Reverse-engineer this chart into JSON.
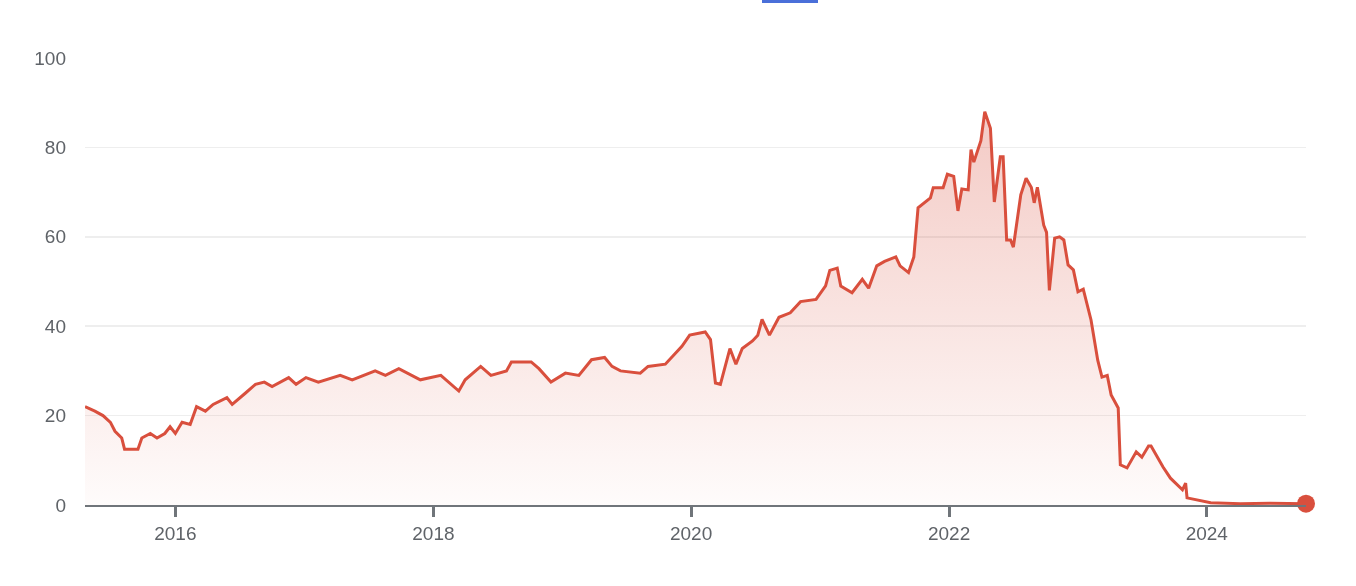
{
  "chart_data": {
    "type": "area",
    "xlim": [
      "2015-04-20",
      "2024-10-08"
    ],
    "ylim": [
      0,
      100
    ],
    "yticks": [
      0,
      20,
      40,
      60,
      80,
      100
    ],
    "xticks": [
      {
        "value": "2016-01-01",
        "label": "2016"
      },
      {
        "value": "2018-01-01",
        "label": "2018"
      },
      {
        "value": "2020-01-01",
        "label": "2020"
      },
      {
        "value": "2022-01-01",
        "label": "2022"
      },
      {
        "value": "2024-01-01",
        "label": "2024"
      }
    ],
    "grid": "y",
    "marker": "none",
    "line_style": "solid",
    "series": [
      {
        "color": "#d94f3d",
        "x": [
          "2015-04-20",
          "2015-05-18",
          "2015-06-10",
          "2015-07-01",
          "2015-07-14",
          "2015-08-02",
          "2015-08-10",
          "2015-09-17",
          "2015-09-28",
          "2015-10-22",
          "2015-11-10",
          "2015-12-02",
          "2015-12-17",
          "2016-01-01",
          "2016-01-20",
          "2016-02-12",
          "2016-03-01",
          "2016-03-26",
          "2016-04-17",
          "2016-05-26",
          "2016-06-10",
          "2016-07-17",
          "2016-08-15",
          "2016-09-09",
          "2016-10-01",
          "2016-11-17",
          "2016-12-08",
          "2017-01-05",
          "2017-02-09",
          "2017-04-12",
          "2017-05-16",
          "2017-07-20",
          "2017-08-18",
          "2017-09-25",
          "2017-11-25",
          "2018-01-22",
          "2018-03-14",
          "2018-04-01",
          "2018-05-15",
          "2018-06-13",
          "2018-07-27",
          "2018-08-10",
          "2018-10-05",
          "2018-10-27",
          "2018-11-30",
          "2019-01-10",
          "2019-02-17",
          "2019-03-25",
          "2019-05-01",
          "2019-05-22",
          "2019-06-15",
          "2019-08-10",
          "2019-09-01",
          "2019-10-20",
          "2019-12-06",
          "2019-12-28",
          "2020-02-10",
          "2020-02-25",
          "2020-03-10",
          "2020-03-24",
          "2020-04-20",
          "2020-05-07",
          "2020-05-25",
          "2020-06-23",
          "2020-07-08",
          "2020-07-20",
          "2020-08-10",
          "2020-09-06",
          "2020-10-08",
          "2020-11-06",
          "2020-12-20",
          "2021-01-16",
          "2021-01-28",
          "2021-02-18",
          "2021-02-28",
          "2021-04-01",
          "2021-04-30",
          "2021-05-18",
          "2021-06-10",
          "2021-07-02",
          "2021-08-03",
          "2021-08-15",
          "2021-09-08",
          "2021-09-23",
          "2021-10-05",
          "2021-11-09",
          "2021-11-17",
          "2021-12-15",
          "2021-12-27",
          "2022-01-14",
          "2022-01-26",
          "2022-02-06",
          "2022-02-24",
          "2022-03-04",
          "2022-03-12",
          "2022-04-01",
          "2022-04-12",
          "2022-04-28",
          "2022-05-09",
          "2022-05-26",
          "2022-06-03",
          "2022-06-13",
          "2022-06-24",
          "2022-07-02",
          "2022-07-23",
          "2022-08-07",
          "2022-08-22",
          "2022-08-30",
          "2022-09-08",
          "2022-09-26",
          "2022-10-04",
          "2022-10-12",
          "2022-10-27",
          "2022-11-10",
          "2022-11-22",
          "2022-12-04",
          "2022-12-19",
          "2023-01-01",
          "2023-01-16",
          "2023-02-07",
          "2023-02-26",
          "2023-03-10",
          "2023-03-25",
          "2023-04-05",
          "2023-04-25",
          "2023-05-01",
          "2023-05-20",
          "2023-06-15",
          "2023-07-01",
          "2023-07-20",
          "2023-07-27",
          "2023-08-30",
          "2023-09-20",
          "2023-10-24",
          "2023-11-02",
          "2023-11-06",
          "2024-01-12",
          "2024-04-05",
          "2024-06-28",
          "2024-10-08"
        ],
        "values": [
          22,
          21,
          20,
          18.5,
          16.5,
          15,
          12.5,
          12.5,
          15,
          16,
          15,
          16,
          17.5,
          16,
          18.5,
          18,
          22,
          21,
          22.5,
          24,
          22.5,
          25,
          27,
          27.5,
          26.5,
          28.5,
          27,
          28.5,
          27.5,
          29,
          28,
          30,
          29,
          30.5,
          28,
          29,
          25.5,
          28,
          31,
          29,
          30,
          32,
          32,
          30.5,
          27.5,
          29.5,
          29,
          32.5,
          33,
          31,
          30,
          29.5,
          31,
          31.5,
          35.5,
          38,
          38.7,
          37,
          27.3,
          27,
          35,
          31.5,
          35,
          36.7,
          38,
          41.5,
          38,
          42,
          43,
          45.5,
          46,
          49,
          52.5,
          53,
          49,
          47.5,
          50.5,
          48.5,
          53.5,
          54.5,
          55.5,
          53.5,
          52,
          55.5,
          66.5,
          68.7,
          71,
          71,
          74,
          73.5,
          65.8,
          70.7,
          70.5,
          79.5,
          76.7,
          81.5,
          88,
          84.3,
          67.8,
          77.9,
          77.9,
          59.3,
          59.3,
          57.7,
          69.4,
          73.1,
          71,
          67.6,
          71.1,
          62.6,
          61,
          48,
          59.7,
          60,
          59.3,
          53.7,
          52.6,
          47.7,
          48.3,
          41.4,
          32.4,
          28.6,
          29,
          24.6,
          21.7,
          9,
          8.3,
          11.9,
          10.7,
          13.2,
          13.2,
          8.5,
          6,
          3.4,
          4.9,
          1.6,
          0.5,
          0.3,
          0.4,
          0.3
        ]
      },
      {
        "type": "scatter",
        "color": "#d94f3d",
        "marker": "circle",
        "x": [
          "2024-10-08"
        ],
        "values": [
          0.3
        ]
      }
    ]
  }
}
